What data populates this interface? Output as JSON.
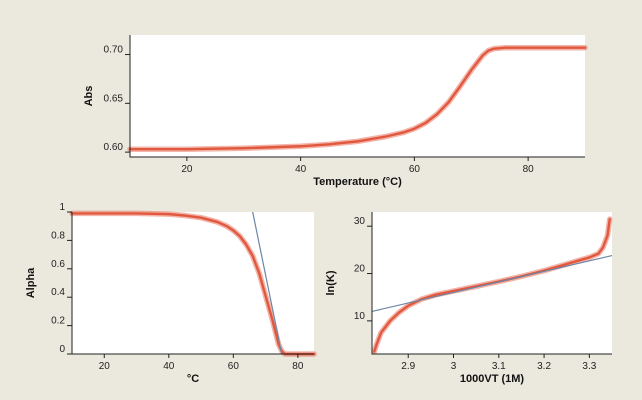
{
  "colors": {
    "background": "#ebe9de",
    "plot_background": "#ffffff",
    "data_curve": "#e2583e",
    "fit_line": "#6b86a6"
  },
  "chart_data": [
    {
      "id": "abs",
      "type": "line",
      "title": "",
      "xlabel": "Temperature (°C)",
      "ylabel": "Abs",
      "xlim": [
        10,
        90
      ],
      "ylim": [
        0.595,
        0.72
      ],
      "xticks": [
        20,
        40,
        60,
        80
      ],
      "xtick_labels": [
        "20",
        "40",
        "60",
        "80"
      ],
      "yticks": [
        0.6,
        0.65,
        0.7
      ],
      "ytick_labels": [
        "0.60",
        "0.65",
        "0.70"
      ],
      "grid": false,
      "series": [
        {
          "role": "data",
          "x": [
            10,
            20,
            30,
            40,
            45,
            50,
            55,
            58,
            60,
            62,
            64,
            66,
            68,
            70,
            72,
            73,
            74,
            76,
            80,
            85,
            90
          ],
          "y": [
            0.603,
            0.603,
            0.604,
            0.606,
            0.608,
            0.611,
            0.616,
            0.62,
            0.624,
            0.63,
            0.639,
            0.651,
            0.667,
            0.684,
            0.699,
            0.704,
            0.706,
            0.707,
            0.707,
            0.707,
            0.707
          ]
        }
      ]
    },
    {
      "id": "alpha",
      "type": "line",
      "title": "",
      "xlabel": "°C",
      "ylabel": "Alpha",
      "xlim": [
        10,
        85
      ],
      "ylim": [
        0,
        1
      ],
      "xticks": [
        20,
        40,
        60,
        80
      ],
      "xtick_labels": [
        "20",
        "40",
        "60",
        "80"
      ],
      "yticks": [
        0,
        0.2,
        0.4,
        0.6,
        0.8,
        1
      ],
      "ytick_labels": [
        "0",
        "0.2",
        "0.4",
        "0.6",
        "0.8",
        "1"
      ],
      "grid": false,
      "series": [
        {
          "role": "data",
          "x": [
            10,
            20,
            30,
            40,
            45,
            50,
            55,
            58,
            60,
            62,
            64,
            66,
            68,
            70,
            72,
            73,
            74,
            75,
            76,
            77,
            80,
            85
          ],
          "y": [
            0.99,
            0.99,
            0.99,
            0.985,
            0.975,
            0.96,
            0.93,
            0.9,
            0.87,
            0.83,
            0.77,
            0.69,
            0.57,
            0.41,
            0.25,
            0.16,
            0.07,
            0.02,
            0.0,
            0.0,
            0.0,
            0.0
          ]
        },
        {
          "role": "fit",
          "x": [
            66,
            75
          ],
          "y": [
            1.0,
            0.0
          ]
        }
      ]
    },
    {
      "id": "lnk",
      "type": "line",
      "title": "",
      "xlabel": "1000VT (1M)",
      "ylabel": "ln(K)",
      "xlim": [
        2.82,
        3.35
      ],
      "ylim": [
        3,
        33
      ],
      "xticks": [
        2.9,
        3.0,
        3.1,
        3.2,
        3.3
      ],
      "xtick_labels": [
        "2.9",
        "3",
        "3.1",
        "3.2",
        "3.3"
      ],
      "yticks": [
        10,
        20,
        30
      ],
      "ytick_labels": [
        "10",
        "20",
        "30"
      ],
      "grid": false,
      "series": [
        {
          "role": "data",
          "x": [
            2.825,
            2.83,
            2.84,
            2.86,
            2.88,
            2.9,
            2.93,
            2.96,
            3.0,
            3.05,
            3.1,
            3.15,
            3.2,
            3.25,
            3.3,
            3.32,
            3.33,
            3.34,
            3.345
          ],
          "y": [
            3.5,
            5.0,
            7.5,
            10.0,
            11.8,
            13.2,
            14.6,
            15.5,
            16.3,
            17.3,
            18.3,
            19.4,
            20.6,
            22.0,
            23.4,
            24.2,
            25.5,
            28.0,
            31.5
          ]
        },
        {
          "role": "fit",
          "x": [
            2.82,
            3.35
          ],
          "y": [
            12.0,
            23.8
          ]
        }
      ]
    }
  ]
}
